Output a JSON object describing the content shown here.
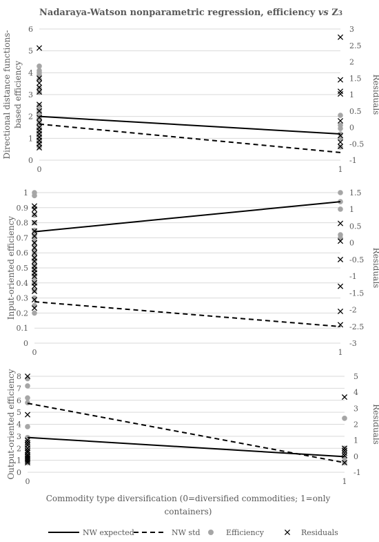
{
  "chart_data": {
    "type": "line",
    "title": "Nadaraya-Watson nonparametric regression, efficiency",
    "title_vs": "vs",
    "title_var": "Z",
    "title_sub": "3",
    "xlabel_line1": "Commodity type diversification (0=diversified commodities; 1=only",
    "xlabel_line2": "containers)",
    "x_ticks": [
      "0",
      "1"
    ],
    "legend": [
      {
        "name": "NW expected",
        "style": "solid"
      },
      {
        "name": "NW std",
        "style": "dashed"
      },
      {
        "name": "Efficiency",
        "style": "dot"
      },
      {
        "name": "Residuals",
        "style": "cross"
      }
    ],
    "colors": {
      "line": "#000000",
      "efficiency": "#a6a6a6",
      "residuals": "#000000",
      "grid": "#d9d9d9",
      "text": "#595959"
    },
    "panels": [
      {
        "ylabel": "Directional distance functions-based efficiency",
        "ylabel_lines": [
          "Directional distance functions-",
          "based efficiency"
        ],
        "y2label": "Residuals",
        "ylim": [
          0,
          6
        ],
        "yticks": [
          0,
          1,
          2,
          3,
          4,
          5,
          6
        ],
        "y2lim": [
          -1,
          3
        ],
        "y2ticks": [
          "-1",
          "-0.5",
          "0",
          "0.5",
          "1",
          "1.5",
          "2",
          "2.5",
          "3"
        ],
        "nw_expected": [
          2.0,
          1.2
        ],
        "nw_std": [
          1.65,
          0.35
        ],
        "efficiency": {
          "x0": [
            4.3,
            4.1,
            4.0,
            3.9,
            3.7,
            3.3,
            3.1,
            2.5,
            2.4,
            2.3,
            2.2,
            2.1,
            2.0,
            1.9,
            1.8,
            1.7,
            1.6,
            1.5,
            1.4,
            1.3,
            1.2,
            1.1,
            1.0,
            0.9,
            0.8,
            0.7,
            0.6
          ],
          "x1": [
            2.05,
            1.6,
            1.45,
            1.2,
            1.0,
            0.6
          ]
        },
        "residuals": {
          "x0": [
            2.42,
            1.5,
            1.35,
            1.22,
            1.08,
            0.7,
            0.5,
            0.3,
            0.15,
            0.0,
            -0.1,
            -0.2,
            -0.3,
            -0.4,
            -0.5,
            -0.62
          ],
          "x1": [
            2.75,
            1.45,
            1.1,
            1.02,
            0.2,
            -0.25,
            -0.45,
            -0.58
          ]
        }
      },
      {
        "ylabel": "Input-oriented efficiency",
        "y2label": "Residuals",
        "ylim": [
          0,
          1
        ],
        "yticks": [
          "0",
          "0.1",
          "0.2",
          "0.3",
          "0.4",
          "0.5",
          "0.6",
          "0.7",
          "0.8",
          "0.9",
          "1"
        ],
        "y2lim": [
          -3,
          1.5
        ],
        "y2ticks": [
          "-3",
          "-2.5",
          "-2",
          "-1.5",
          "-1",
          "-0.5",
          "0",
          "0.5",
          "1",
          "1.5"
        ],
        "nw_expected": [
          0.74,
          0.94
        ],
        "nw_std": [
          0.275,
          0.11
        ],
        "efficiency": {
          "x0": [
            1.0,
            0.98,
            0.9,
            0.85,
            0.8,
            0.75,
            0.72,
            0.7,
            0.68,
            0.65,
            0.62,
            0.6,
            0.58,
            0.55,
            0.52,
            0.5,
            0.48,
            0.45,
            0.42,
            0.4,
            0.35,
            0.3,
            0.25,
            0.2
          ],
          "x1": [
            1.0,
            0.94,
            0.89,
            0.72,
            0.7
          ]
        },
        "residuals": {
          "x0": [
            1.1,
            1.0,
            0.85,
            0.6,
            0.35,
            0.2,
            0.0,
            -0.15,
            -0.3,
            -0.45,
            -0.55,
            -0.7,
            -0.8,
            -0.9,
            -1.0,
            -1.2,
            -1.3,
            -1.45,
            -1.7,
            -1.95
          ],
          "x1": [
            0.58,
            0.05,
            -0.5,
            -1.3,
            -2.05,
            -2.45
          ]
        }
      },
      {
        "ylabel": "Output-oriented efficiency",
        "y2label": "Residuals",
        "ylim": [
          0,
          8
        ],
        "yticks": [
          "0",
          "1",
          "2",
          "3",
          "4",
          "5",
          "6",
          "7",
          "8"
        ],
        "y2lim": [
          -1,
          5
        ],
        "y2ticks": [
          "-1",
          "0",
          "1",
          "2",
          "3",
          "4",
          "5"
        ],
        "nw_expected": [
          2.9,
          1.3
        ],
        "nw_std": [
          5.75,
          0.8
        ],
        "efficiency": {
          "x0": [
            7.8,
            7.2,
            6.2,
            5.8,
            3.8,
            2.9,
            2.6,
            2.3,
            2.0,
            1.8,
            1.5,
            1.3,
            1.1,
            1.0,
            0.8
          ],
          "x1": [
            4.5,
            2.0,
            1.2,
            0.8
          ]
        },
        "residuals": {
          "x0": [
            5.0,
            2.6,
            1.0,
            0.85,
            0.7,
            0.5,
            0.35,
            0.25,
            0.1,
            0.0,
            -0.1,
            -0.2,
            -0.3,
            -0.4
          ],
          "x1": [
            3.7,
            0.5,
            0.35,
            0.2,
            0.05,
            -0.4
          ]
        }
      }
    ]
  }
}
